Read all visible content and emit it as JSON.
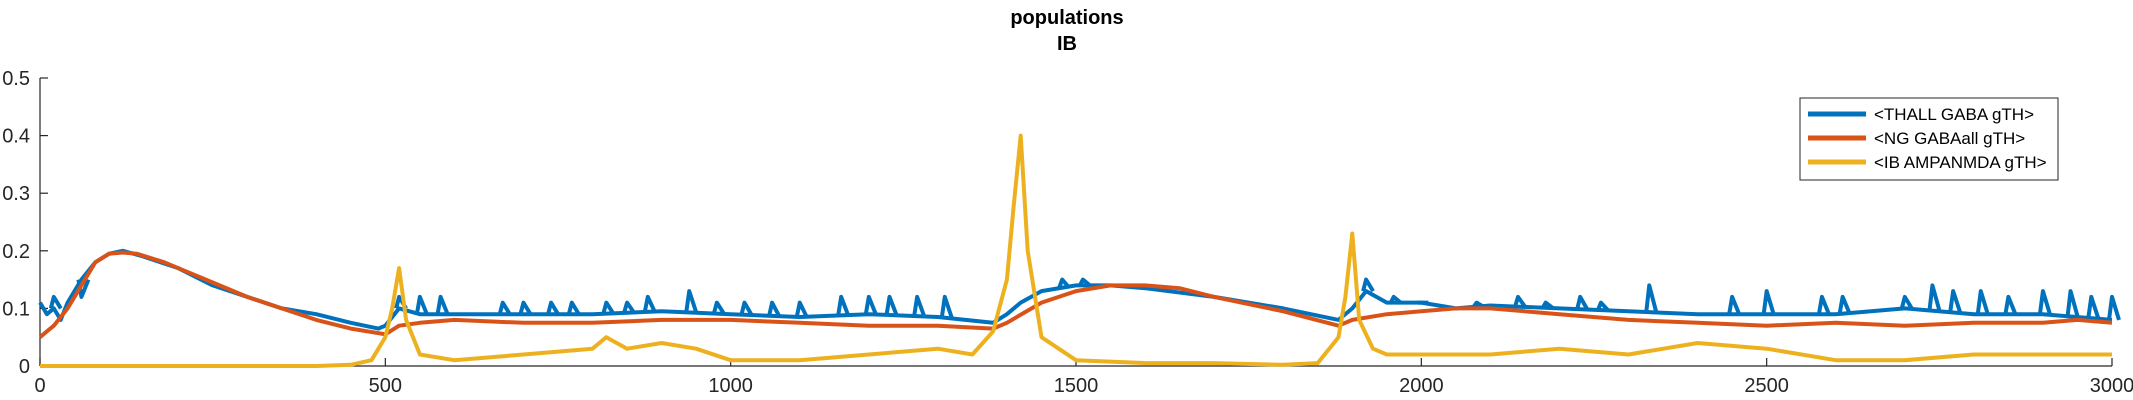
{
  "chart_data": {
    "type": "line",
    "title": "populations",
    "subtitle": "IB",
    "xlabel": "",
    "ylabel": "",
    "xlim": [
      0,
      3000
    ],
    "ylim": [
      0,
      0.5
    ],
    "x_ticks": [
      0,
      500,
      1000,
      1500,
      2000,
      2500,
      3000
    ],
    "x_tick_labels": [
      "0",
      "500",
      "1000",
      "1500",
      "2000",
      "2500",
      "3000"
    ],
    "y_ticks": [
      0,
      0.1,
      0.2,
      0.3,
      0.4,
      0.5
    ],
    "y_tick_labels": [
      "0",
      "0.1",
      "0.2",
      "0.3",
      "0.4",
      "0.5"
    ],
    "grid": false,
    "legend_position": "top-right",
    "series": [
      {
        "name": "<THALL GABA gTH>",
        "color": "#0072BD",
        "x": [
          0,
          10,
          20,
          30,
          40,
          60,
          80,
          100,
          120,
          150,
          200,
          250,
          300,
          350,
          400,
          450,
          490,
          500,
          520,
          550,
          600,
          700,
          800,
          900,
          1000,
          1100,
          1200,
          1300,
          1380,
          1400,
          1420,
          1450,
          1500,
          1550,
          1600,
          1700,
          1800,
          1880,
          1900,
          1920,
          1950,
          2000,
          2050,
          2100,
          2200,
          2300,
          2400,
          2500,
          2600,
          2700,
          2800,
          2900,
          3000
        ],
        "y": [
          0.11,
          0.09,
          0.1,
          0.08,
          0.11,
          0.15,
          0.18,
          0.195,
          0.2,
          0.19,
          0.17,
          0.14,
          0.12,
          0.1,
          0.09,
          0.075,
          0.065,
          0.07,
          0.1,
          0.09,
          0.09,
          0.09,
          0.09,
          0.095,
          0.09,
          0.085,
          0.09,
          0.085,
          0.075,
          0.09,
          0.11,
          0.13,
          0.14,
          0.14,
          0.135,
          0.12,
          0.1,
          0.08,
          0.1,
          0.13,
          0.11,
          0.11,
          0.1,
          0.105,
          0.1,
          0.095,
          0.09,
          0.09,
          0.09,
          0.1,
          0.09,
          0.09,
          0.08
        ],
        "spikes": [
          [
            20,
            0.12
          ],
          [
            60,
            0.12
          ],
          [
            520,
            0.12
          ],
          [
            550,
            0.12
          ],
          [
            580,
            0.12
          ],
          [
            670,
            0.11
          ],
          [
            700,
            0.11
          ],
          [
            740,
            0.11
          ],
          [
            770,
            0.11
          ],
          [
            820,
            0.11
          ],
          [
            850,
            0.11
          ],
          [
            880,
            0.12
          ],
          [
            940,
            0.13
          ],
          [
            980,
            0.11
          ],
          [
            1020,
            0.11
          ],
          [
            1060,
            0.11
          ],
          [
            1100,
            0.11
          ],
          [
            1160,
            0.12
          ],
          [
            1200,
            0.12
          ],
          [
            1230,
            0.12
          ],
          [
            1270,
            0.12
          ],
          [
            1310,
            0.12
          ],
          [
            1480,
            0.15
          ],
          [
            1510,
            0.15
          ],
          [
            1920,
            0.15
          ],
          [
            1960,
            0.12
          ],
          [
            2000,
            0.11
          ],
          [
            2080,
            0.11
          ],
          [
            2140,
            0.12
          ],
          [
            2180,
            0.11
          ],
          [
            2230,
            0.12
          ],
          [
            2260,
            0.11
          ],
          [
            2330,
            0.14
          ],
          [
            2450,
            0.12
          ],
          [
            2500,
            0.13
          ],
          [
            2580,
            0.12
          ],
          [
            2610,
            0.12
          ],
          [
            2700,
            0.12
          ],
          [
            2740,
            0.14
          ],
          [
            2770,
            0.13
          ],
          [
            2810,
            0.13
          ],
          [
            2850,
            0.12
          ],
          [
            2900,
            0.13
          ],
          [
            2940,
            0.13
          ],
          [
            2970,
            0.12
          ],
          [
            3000,
            0.12
          ]
        ]
      },
      {
        "name": "<NG GABAall gTH>",
        "color": "#D95319",
        "x": [
          0,
          10,
          20,
          40,
          60,
          80,
          100,
          120,
          140,
          180,
          220,
          260,
          300,
          350,
          400,
          450,
          500,
          520,
          550,
          600,
          700,
          800,
          900,
          1000,
          1100,
          1200,
          1300,
          1380,
          1400,
          1450,
          1500,
          1550,
          1600,
          1650,
          1700,
          1800,
          1880,
          1900,
          1950,
          2000,
          2050,
          2100,
          2200,
          2300,
          2400,
          2500,
          2600,
          2700,
          2800,
          2900,
          2950,
          3000
        ],
        "y": [
          0.05,
          0.06,
          0.07,
          0.1,
          0.14,
          0.18,
          0.195,
          0.197,
          0.195,
          0.18,
          0.16,
          0.14,
          0.12,
          0.1,
          0.08,
          0.065,
          0.055,
          0.07,
          0.075,
          0.08,
          0.075,
          0.075,
          0.08,
          0.08,
          0.075,
          0.07,
          0.07,
          0.065,
          0.075,
          0.11,
          0.13,
          0.14,
          0.14,
          0.135,
          0.12,
          0.095,
          0.07,
          0.08,
          0.09,
          0.095,
          0.1,
          0.1,
          0.09,
          0.08,
          0.075,
          0.07,
          0.075,
          0.07,
          0.075,
          0.075,
          0.08,
          0.075
        ]
      },
      {
        "name": "<IB AMPANMDA gTH>",
        "color": "#EDB120",
        "x": [
          0,
          100,
          200,
          300,
          400,
          450,
          480,
          500,
          510,
          520,
          530,
          550,
          600,
          700,
          800,
          820,
          850,
          900,
          950,
          1000,
          1100,
          1200,
          1300,
          1350,
          1380,
          1400,
          1410,
          1420,
          1430,
          1450,
          1500,
          1600,
          1700,
          1800,
          1850,
          1880,
          1890,
          1900,
          1910,
          1930,
          1950,
          2000,
          2100,
          2200,
          2300,
          2400,
          2500,
          2600,
          2700,
          2800,
          2900,
          3000
        ],
        "y": [
          0.0,
          0.0,
          0.0,
          0.0,
          0.0,
          0.002,
          0.01,
          0.05,
          0.1,
          0.17,
          0.08,
          0.02,
          0.01,
          0.02,
          0.03,
          0.05,
          0.03,
          0.04,
          0.03,
          0.01,
          0.01,
          0.02,
          0.03,
          0.02,
          0.06,
          0.15,
          0.28,
          0.4,
          0.2,
          0.05,
          0.01,
          0.005,
          0.005,
          0.002,
          0.005,
          0.05,
          0.12,
          0.23,
          0.08,
          0.03,
          0.02,
          0.02,
          0.02,
          0.03,
          0.02,
          0.04,
          0.03,
          0.01,
          0.01,
          0.02,
          0.02,
          0.02
        ]
      }
    ]
  }
}
